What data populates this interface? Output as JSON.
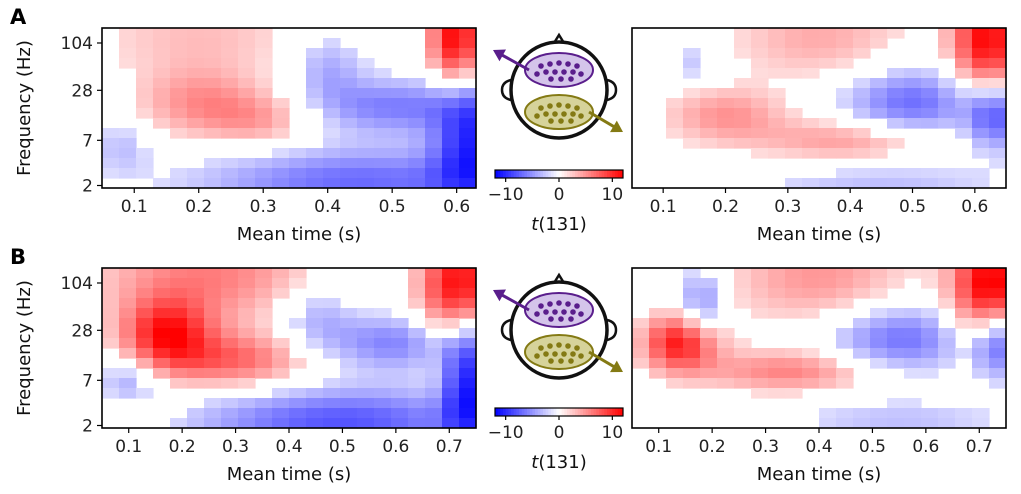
{
  "panel_labels": [
    "A",
    "B"
  ],
  "colorbar": {
    "label_html": "t(131)",
    "ticks": [
      -10,
      0,
      10
    ],
    "tick_labels": [
      "−10",
      "0",
      "10"
    ],
    "range": [
      -12,
      12
    ],
    "colormap": "bwr"
  },
  "colors": {
    "posterior_sensors": "#5a1e8c",
    "posterior_fill": "#d4c4ea",
    "anterior_sensors": "#847a14",
    "anterior_fill": "#d6d39a",
    "outline": "#111111"
  },
  "chart_data": [
    {
      "id": "A-left",
      "type": "heatmap",
      "title": "",
      "xlabel": "",
      "ylabel": "Frequency (Hz)",
      "xlim": [
        0.05,
        0.63
      ],
      "xticks": [
        0.1,
        0.2,
        0.3,
        0.4,
        0.5,
        0.6
      ],
      "xtick_labels": [
        "0.1",
        "0.2",
        "0.3",
        "0.4",
        "0.5",
        "0.6"
      ],
      "ylim_log2": [
        0.9,
        7.3
      ],
      "yticks": [
        2,
        7,
        28,
        104
      ],
      "ytick_labels": [
        "2",
        "7",
        "28",
        "104"
      ],
      "blobs": [
        {
          "t": 0.6,
          "f": 110,
          "amp": 13,
          "st": 0.03,
          "sf": 0.7
        },
        {
          "t": 0.2,
          "f": 130,
          "amp": 3,
          "st": 0.12,
          "sf": 0.6
        },
        {
          "t": 0.2,
          "f": 20,
          "amp": 5,
          "st": 0.07,
          "sf": 0.5
        },
        {
          "t": 0.3,
          "f": 12,
          "amp": 4,
          "st": 0.06,
          "sf": 0.4
        },
        {
          "t": 0.4,
          "f": 55,
          "amp": -4,
          "st": 0.04,
          "sf": 0.5
        },
        {
          "t": 0.5,
          "f": 18,
          "amp": -6,
          "st": 0.09,
          "sf": 0.4
        },
        {
          "t": 0.62,
          "f": 8,
          "amp": -9,
          "st": 0.04,
          "sf": 1.0
        },
        {
          "t": 0.45,
          "f": 2.2,
          "amp": -7,
          "st": 0.18,
          "sf": 0.5
        },
        {
          "t": 0.08,
          "f": 6,
          "amp": -3,
          "st": 0.03,
          "sf": 0.4
        }
      ]
    },
    {
      "id": "A-right",
      "type": "heatmap",
      "title": "",
      "xlabel": "Mean time (s)",
      "ylabel": "",
      "xlim": [
        0.05,
        0.65
      ],
      "xticks": [
        0.1,
        0.2,
        0.3,
        0.4,
        0.5,
        0.6
      ],
      "xtick_labels": [
        "0.1",
        "0.2",
        "0.3",
        "0.4",
        "0.5",
        "0.6"
      ],
      "ylim_log2": [
        0.9,
        7.3
      ],
      "blobs": [
        {
          "t": 0.62,
          "f": 110,
          "amp": 12,
          "st": 0.04,
          "sf": 0.8
        },
        {
          "t": 0.35,
          "f": 120,
          "amp": 4,
          "st": 0.1,
          "sf": 0.6
        },
        {
          "t": 0.2,
          "f": 14,
          "amp": 5,
          "st": 0.07,
          "sf": 0.4
        },
        {
          "t": 0.4,
          "f": 7,
          "amp": 5,
          "st": 0.1,
          "sf": 0.3
        },
        {
          "t": 0.15,
          "f": 60,
          "amp": -3,
          "st": 0.03,
          "sf": 0.3
        },
        {
          "t": 0.5,
          "f": 20,
          "amp": -7,
          "st": 0.08,
          "sf": 0.5
        },
        {
          "t": 0.63,
          "f": 14,
          "amp": -8,
          "st": 0.03,
          "sf": 0.5
        },
        {
          "t": 0.45,
          "f": 2.1,
          "amp": -3,
          "st": 0.15,
          "sf": 0.3
        }
      ]
    },
    {
      "id": "B-left",
      "type": "heatmap",
      "title": "",
      "xlabel": "Mean time (s)",
      "ylabel": "Frequency (Hz)",
      "xlim": [
        0.05,
        0.75
      ],
      "xticks": [
        0.1,
        0.2,
        0.3,
        0.4,
        0.5,
        0.6,
        0.7
      ],
      "xtick_labels": [
        "0.1",
        "0.2",
        "0.3",
        "0.4",
        "0.5",
        "0.6",
        "0.7"
      ],
      "ylim_log2": [
        0.9,
        7.3
      ],
      "yticks": [
        2,
        7,
        28,
        104
      ],
      "ytick_labels": [
        "2",
        "7",
        "28",
        "104"
      ],
      "blobs": [
        {
          "t": 0.72,
          "f": 90,
          "amp": 13,
          "st": 0.05,
          "sf": 0.8
        },
        {
          "t": 0.25,
          "f": 130,
          "amp": 6,
          "st": 0.15,
          "sf": 0.7
        },
        {
          "t": 0.17,
          "f": 25,
          "amp": 10,
          "st": 0.06,
          "sf": 0.5
        },
        {
          "t": 0.3,
          "f": 12,
          "amp": 7,
          "st": 0.1,
          "sf": 0.4
        },
        {
          "t": 0.45,
          "f": 45,
          "amp": -4,
          "st": 0.05,
          "sf": 0.5
        },
        {
          "t": 0.6,
          "f": 20,
          "amp": -6,
          "st": 0.1,
          "sf": 0.4
        },
        {
          "t": 0.73,
          "f": 8,
          "amp": -10,
          "st": 0.03,
          "sf": 1.0
        },
        {
          "t": 0.5,
          "f": 2.2,
          "amp": -8,
          "st": 0.2,
          "sf": 0.5
        },
        {
          "t": 0.1,
          "f": 6,
          "amp": -5,
          "st": 0.04,
          "sf": 0.4
        },
        {
          "t": 0.1,
          "f": 3,
          "amp": 4,
          "st": 0.05,
          "sf": 0.3
        }
      ]
    },
    {
      "id": "B-right",
      "type": "heatmap",
      "title": "",
      "xlabel": "Mean time (s)",
      "ylabel": "",
      "xlim": [
        0.05,
        0.75
      ],
      "xticks": [
        0.1,
        0.2,
        0.3,
        0.4,
        0.5,
        0.6,
        0.7
      ],
      "xtick_labels": [
        "0.1",
        "0.2",
        "0.3",
        "0.4",
        "0.5",
        "0.6",
        "0.7"
      ],
      "ylim_log2": [
        0.9,
        7.3
      ],
      "blobs": [
        {
          "t": 0.72,
          "f": 90,
          "amp": 13,
          "st": 0.05,
          "sf": 0.8
        },
        {
          "t": 0.4,
          "f": 120,
          "amp": 5,
          "st": 0.12,
          "sf": 0.7
        },
        {
          "t": 0.14,
          "f": 20,
          "amp": 11,
          "st": 0.05,
          "sf": 0.4
        },
        {
          "t": 0.35,
          "f": 9,
          "amp": 6,
          "st": 0.12,
          "sf": 0.3
        },
        {
          "t": 0.18,
          "f": 60,
          "amp": -6,
          "st": 0.03,
          "sf": 0.5
        },
        {
          "t": 0.55,
          "f": 22,
          "amp": -7,
          "st": 0.1,
          "sf": 0.5
        },
        {
          "t": 0.73,
          "f": 20,
          "amp": -9,
          "st": 0.03,
          "sf": 0.5
        },
        {
          "t": 0.55,
          "f": 2.3,
          "amp": -3,
          "st": 0.15,
          "sf": 0.3
        }
      ]
    }
  ]
}
